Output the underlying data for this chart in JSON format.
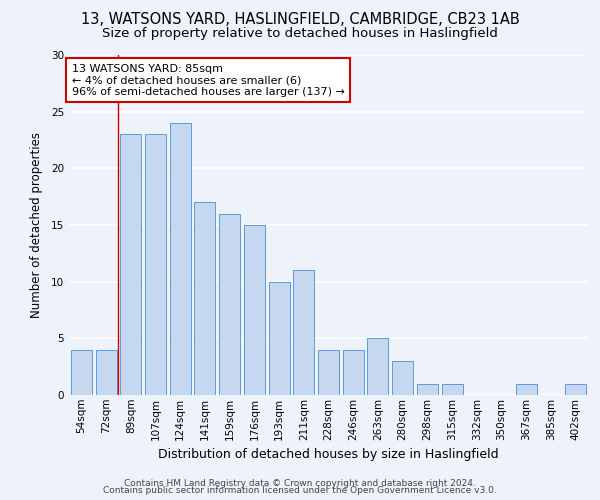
{
  "title1": "13, WATSONS YARD, HASLINGFIELD, CAMBRIDGE, CB23 1AB",
  "title2": "Size of property relative to detached houses in Haslingfield",
  "xlabel": "Distribution of detached houses by size in Haslingfield",
  "ylabel": "Number of detached properties",
  "categories": [
    "54sqm",
    "72sqm",
    "89sqm",
    "107sqm",
    "124sqm",
    "141sqm",
    "159sqm",
    "176sqm",
    "193sqm",
    "211sqm",
    "228sqm",
    "246sqm",
    "263sqm",
    "280sqm",
    "298sqm",
    "315sqm",
    "332sqm",
    "350sqm",
    "367sqm",
    "385sqm",
    "402sqm"
  ],
  "values": [
    4,
    4,
    23,
    23,
    24,
    17,
    16,
    15,
    10,
    11,
    4,
    4,
    5,
    3,
    1,
    1,
    0,
    0,
    1,
    0,
    1
  ],
  "bar_color": "#c5d8f0",
  "bar_edge_color": "#5b9bd5",
  "annotation_text": "13 WATSONS YARD: 85sqm\n← 4% of detached houses are smaller (6)\n96% of semi-detached houses are larger (137) →",
  "annotation_box_color": "#ffffff",
  "annotation_box_edge_color": "#cc0000",
  "vline_x_index": 2,
  "ylim": [
    0,
    30
  ],
  "yticks": [
    0,
    5,
    10,
    15,
    20,
    25,
    30
  ],
  "footer1": "Contains HM Land Registry data © Crown copyright and database right 2024.",
  "footer2": "Contains public sector information licensed under the Open Government Licence v3.0.",
  "background_color": "#eef2fa",
  "grid_color": "#ffffff",
  "title1_fontsize": 10.5,
  "title2_fontsize": 9.5,
  "xlabel_fontsize": 9,
  "ylabel_fontsize": 8.5,
  "tick_fontsize": 7.5,
  "footer_fontsize": 6.5,
  "annotation_fontsize": 8
}
